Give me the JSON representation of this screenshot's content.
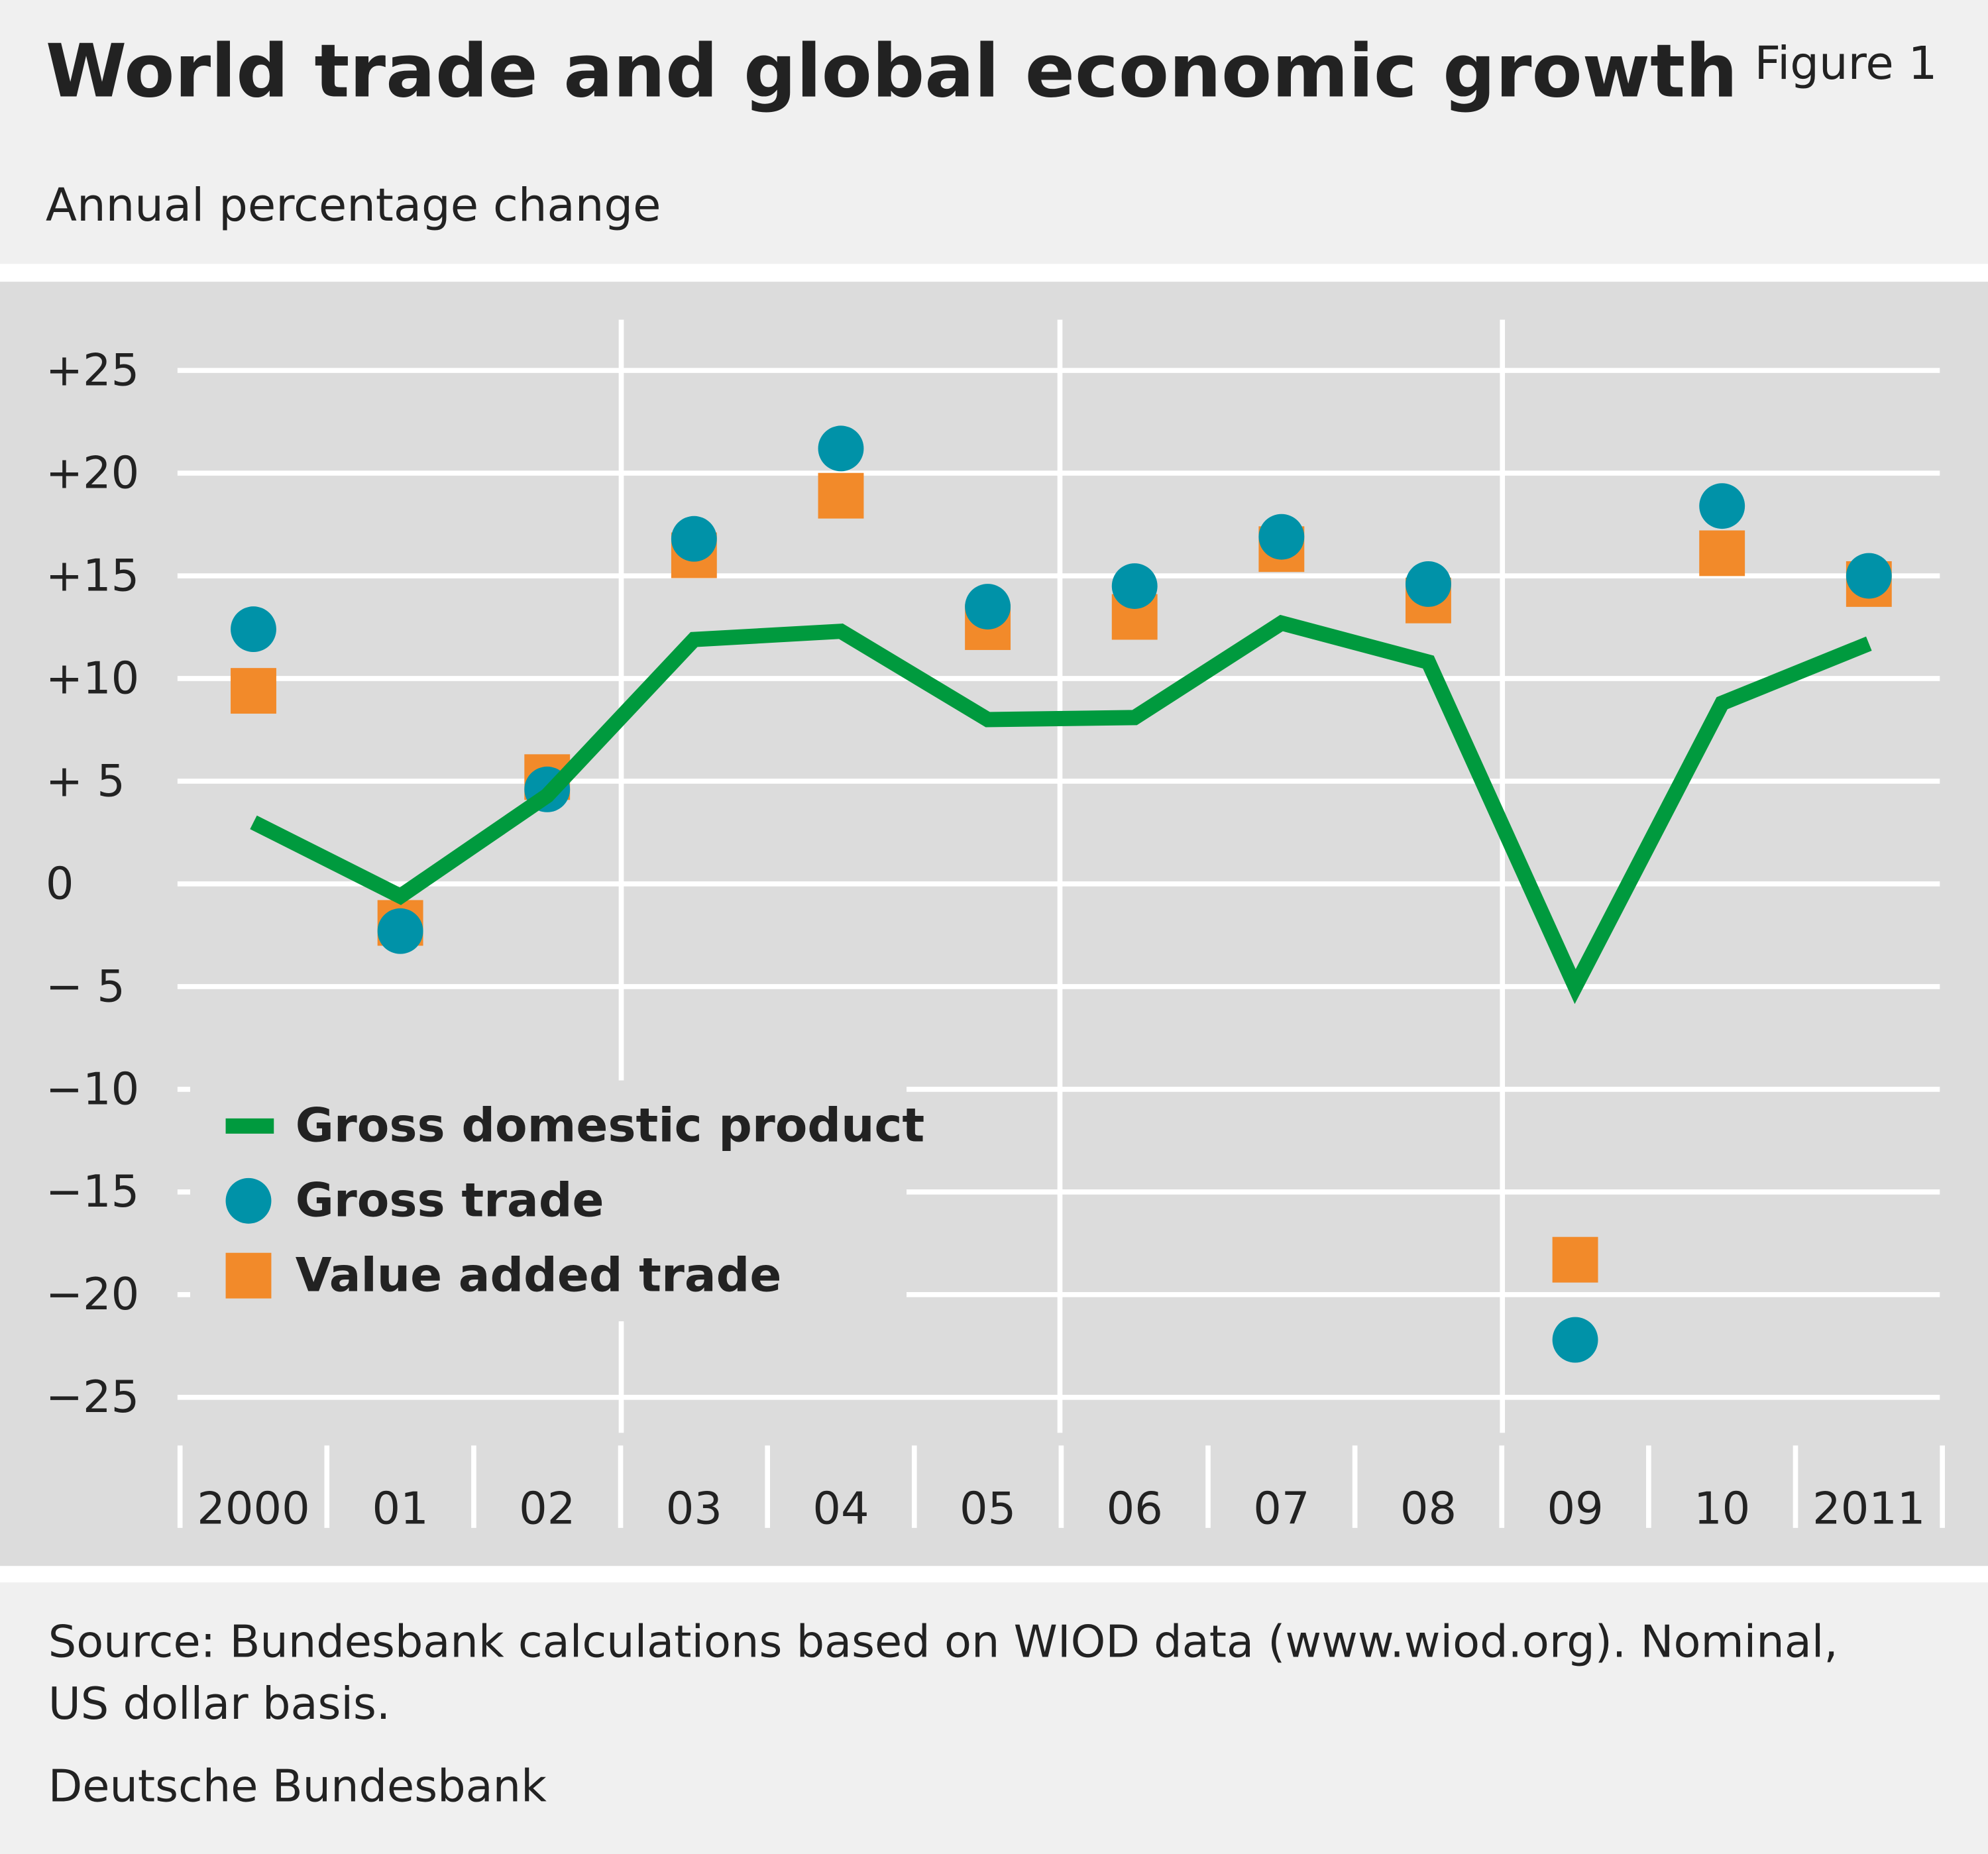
{
  "chart_data": {
    "type": "line",
    "title": "World trade and global economic growth",
    "figure_label": "Figure 1",
    "subtitle": "Annual percentage change",
    "source": [
      "Source: Bundesbank calculations based on WIOD data (www.wiod.org). Nominal,",
      "US dollar basis."
    ],
    "publisher": "Deutsche Bundesbank",
    "categories": [
      "2000",
      "01",
      "02",
      "03",
      "04",
      "05",
      "06",
      "07",
      "08",
      "09",
      "10",
      "2011"
    ],
    "series": [
      {
        "name": "Gross domestic product",
        "color": "#009a3e",
        "marker": "line",
        "values": [
          3.0,
          -0.6,
          4.3,
          11.9,
          12.3,
          8.0,
          8.1,
          12.7,
          10.8,
          -5.0,
          8.8,
          11.7
        ]
      },
      {
        "name": "Gross trade",
        "color": "#0092a8",
        "marker": "circle",
        "values": [
          12.4,
          -2.3,
          4.6,
          16.8,
          21.2,
          13.5,
          14.5,
          16.9,
          14.6,
          -22.2,
          18.4,
          15.0
        ]
      },
      {
        "name": "Value added trade",
        "color": "#f28a2a",
        "marker": "square",
        "values": [
          9.4,
          -1.9,
          5.2,
          16.0,
          18.9,
          12.5,
          13.0,
          16.3,
          13.8,
          -18.3,
          16.1,
          14.6
        ]
      }
    ],
    "ylim": [
      -27.5,
      27.5
    ],
    "yticks": [
      {
        "value": 25,
        "label": "+25"
      },
      {
        "value": 20,
        "label": "+20"
      },
      {
        "value": 15,
        "label": "+15"
      },
      {
        "value": 10,
        "label": "+10"
      },
      {
        "value": 5,
        "label": "+ 5"
      },
      0,
      {
        "value": -5,
        "label": "− 5"
      },
      {
        "value": -10,
        "label": "−10"
      },
      {
        "value": -15,
        "label": "−15"
      },
      {
        "value": -20,
        "label": "−20"
      },
      {
        "value": -25,
        "label": "−25"
      }
    ],
    "grid": true,
    "legend": "lower-left"
  }
}
